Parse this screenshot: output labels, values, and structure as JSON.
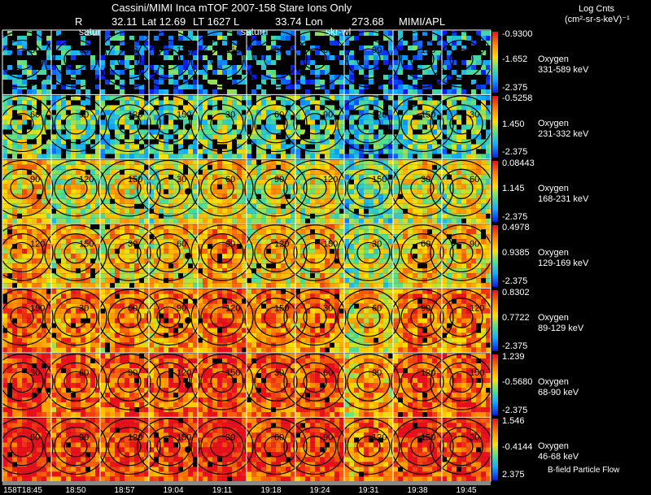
{
  "header": {
    "title": "Cassini/MIMI Inca mTOF  2007-158   Stare    Ions Only",
    "info_r": "R",
    "info_r_val": "32.11",
    "info_lat": "Lat 12.69",
    "info_lt": "LT 1627",
    "info_l": "L",
    "info_lon_val": "33.74",
    "info_lon": "Lon",
    "info_last": "273.68",
    "info_apl": "MIMI/APL",
    "tag_satur": "satur",
    "tag_saturn": "saturn",
    "tag_skr": "skr-wl"
  },
  "colorbar_title": {
    "line1": "Log Cnts",
    "line2": "(cm²-sr-s-keV)⁻¹"
  },
  "footer": {
    "flow_label": "B-field Particle Flow"
  },
  "chart_data": {
    "type": "heatmap",
    "title": "Cassini/MIMI Inca mTOF  2007-158   Stare    Ions Only",
    "x_tick_labels": [
      "158T18:45",
      "18:50",
      "18:57",
      "19:04",
      "19:11",
      "19:18",
      "19:24",
      "19:31",
      "19:38",
      "19:45"
    ],
    "contour_levels": [
      "30",
      "60",
      "90",
      "120",
      "150"
    ],
    "rows": [
      {
        "species": "Oxygen",
        "energy": "331-589 keV",
        "cmax": "-0.9300",
        "cmid": "-1.652",
        "cmin": "-2.375",
        "level": 0.15
      },
      {
        "species": "Oxygen",
        "energy": "231-332 keV",
        "cmax": "-0.5258",
        "cmid": "1.450",
        "cmin": "-2.375",
        "level": 0.35
      },
      {
        "species": "Oxygen",
        "energy": "168-231 keV",
        "cmax": "0.08443",
        "cmid": "1.145",
        "cmin": "-2.375",
        "level": 0.5
      },
      {
        "species": "Oxygen",
        "energy": "129-169 keV",
        "cmax": "0.4978",
        "cmid": "0.9385",
        "cmin": "-2.375",
        "level": 0.6
      },
      {
        "species": "Oxygen",
        "energy": "89-129 keV",
        "cmax": "0.8302",
        "cmid": "0.7722",
        "cmin": "-2.375",
        "level": 0.72
      },
      {
        "species": "Oxygen",
        "energy": "68-90 keV",
        "cmax": "1.239",
        "cmid": "-0.5680",
        "cmin": "-2.375",
        "level": 0.8
      },
      {
        "species": "Oxygen",
        "energy": "46-68 keV",
        "cmax": "1.546",
        "cmid": "-0.4144",
        "cmin": "2.375",
        "level": 0.86
      }
    ]
  }
}
